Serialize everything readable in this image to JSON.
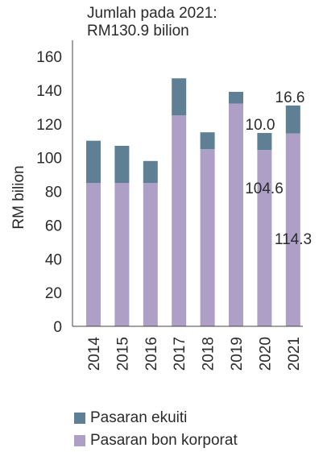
{
  "chart_data": {
    "type": "bar",
    "title_line1": "Jumlah pada 2021:",
    "title_line2": "RM130.9 bilion",
    "ylabel": "RM bilion",
    "xlabel": "",
    "ylim": [
      0,
      160
    ],
    "yticks": [
      0,
      20,
      40,
      60,
      80,
      100,
      120,
      140,
      160
    ],
    "categories": [
      "2014",
      "2015",
      "2016",
      "2017",
      "2018",
      "2019",
      "2020",
      "2021"
    ],
    "series": [
      {
        "name": "Pasaran bon korporat",
        "color": "#ae9fc6",
        "values": [
          85,
          85,
          85,
          125,
          105,
          132,
          104.6,
          114.3
        ]
      },
      {
        "name": "Pasaran ekuiti",
        "color": "#5e7f94",
        "values": [
          25,
          22,
          13,
          22,
          10,
          7,
          10.0,
          16.6
        ]
      }
    ],
    "data_labels": [
      {
        "category": "2020",
        "series": "Pasaran ekuiti",
        "text": "10.0"
      },
      {
        "category": "2020",
        "series": "Pasaran bon korporat",
        "text": "104.6"
      },
      {
        "category": "2021",
        "series": "Pasaran ekuiti",
        "text": "16.6"
      },
      {
        "category": "2021",
        "series": "Pasaran bon korporat",
        "text": "114.3"
      }
    ],
    "grid": false,
    "legend_position": "bottom"
  }
}
